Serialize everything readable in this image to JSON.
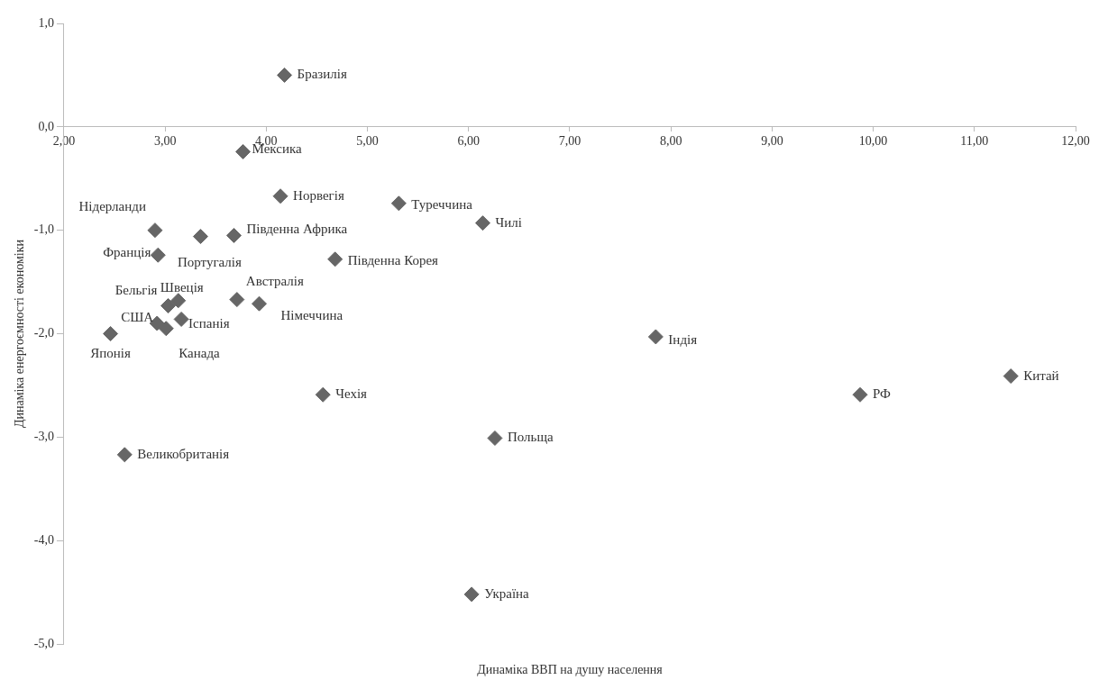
{
  "chart_data": {
    "type": "scatter",
    "xlabel": "Динаміка ВВП на душу населення",
    "ylabel": "Динаміка енергоємності економіки",
    "x": [
      4.18,
      3.77,
      4.14,
      5.31,
      6.14,
      2.9,
      3.35,
      3.68,
      2.93,
      4.68,
      3.13,
      3.71,
      3.93,
      3.03,
      2.92,
      3.16,
      3.01,
      2.46,
      7.85,
      11.36,
      9.87,
      4.56,
      6.26,
      2.6,
      6.03
    ],
    "series": [
      {
        "color": "#666666",
        "values": [
          0.5,
          -0.24,
          -0.67,
          -0.74,
          -0.93,
          -1.0,
          -1.06,
          -1.05,
          -1.24,
          -1.28,
          -1.68,
          -1.67,
          -1.71,
          -1.73,
          -1.9,
          -1.86,
          -1.95,
          -2.0,
          -2.03,
          -2.41,
          -2.59,
          -2.59,
          -3.01,
          -3.17,
          -4.52
        ]
      }
    ],
    "annotations": [
      {
        "text": "Бразилія",
        "x": 4.18,
        "y": 0.5
      },
      {
        "text": "Мексика",
        "x": 3.77,
        "y": -0.24
      },
      {
        "text": "Норвегія",
        "x": 4.14,
        "y": -0.67
      },
      {
        "text": "Туреччина",
        "x": 5.31,
        "y": -0.74
      },
      {
        "text": "Чилі",
        "x": 6.14,
        "y": -0.93
      },
      {
        "text": "Нідерланди",
        "x": 2.9,
        "y": -1.0
      },
      {
        "text": "Португалія",
        "x": 3.35,
        "y": -1.06
      },
      {
        "text": "Південна Африка",
        "x": 3.68,
        "y": -1.05
      },
      {
        "text": "Франція",
        "x": 2.93,
        "y": -1.24
      },
      {
        "text": "Південна Корея",
        "x": 4.68,
        "y": -1.28
      },
      {
        "text": "Швеція",
        "x": 3.13,
        "y": -1.68
      },
      {
        "text": "Австралія",
        "x": 3.71,
        "y": -1.67
      },
      {
        "text": "Німеччина",
        "x": 3.93,
        "y": -1.71
      },
      {
        "text": "Бельгія",
        "x": 3.03,
        "y": -1.73
      },
      {
        "text": "США",
        "x": 2.92,
        "y": -1.9
      },
      {
        "text": "Іспанія",
        "x": 3.16,
        "y": -1.86
      },
      {
        "text": "Канада",
        "x": 3.01,
        "y": -1.95
      },
      {
        "text": "Японія",
        "x": 2.46,
        "y": -2.0
      },
      {
        "text": "Індія",
        "x": 7.85,
        "y": -2.03
      },
      {
        "text": "Китай",
        "x": 11.36,
        "y": -2.41
      },
      {
        "text": "РФ",
        "x": 9.87,
        "y": -2.59
      },
      {
        "text": "Чехія",
        "x": 4.56,
        "y": -2.59
      },
      {
        "text": "Польща",
        "x": 6.26,
        "y": -3.01
      },
      {
        "text": "Великобританія",
        "x": 2.6,
        "y": -3.17
      },
      {
        "text": "Україна",
        "x": 6.03,
        "y": -4.52
      }
    ],
    "xlim": [
      2,
      12
    ],
    "xticks": [
      {
        "value": 2,
        "label": "2,00"
      },
      {
        "value": 3,
        "label": "3,00"
      },
      {
        "value": 4,
        "label": "4,00"
      },
      {
        "value": 5,
        "label": "5,00"
      },
      {
        "value": 6,
        "label": "6,00"
      },
      {
        "value": 7,
        "label": "7,00"
      },
      {
        "value": 8,
        "label": "8,00"
      },
      {
        "value": 9,
        "label": "9,00"
      },
      {
        "value": 10,
        "label": "10,00"
      },
      {
        "value": 11,
        "label": "11,00"
      },
      {
        "value": 12,
        "label": "12,00"
      }
    ],
    "ylim": [
      -5,
      1
    ],
    "yticks": [
      {
        "value": -5,
        "label": "-5,0"
      },
      {
        "value": -4,
        "label": "-4,0"
      },
      {
        "value": -3,
        "label": "-3,0"
      },
      {
        "value": -2,
        "label": "-2,0"
      },
      {
        "value": -1,
        "label": "-1,0"
      },
      {
        "value": 0,
        "label": "0,0"
      },
      {
        "value": 1,
        "label": "1,0"
      }
    ],
    "marker": "diamond",
    "grid": false,
    "legend": false
  }
}
